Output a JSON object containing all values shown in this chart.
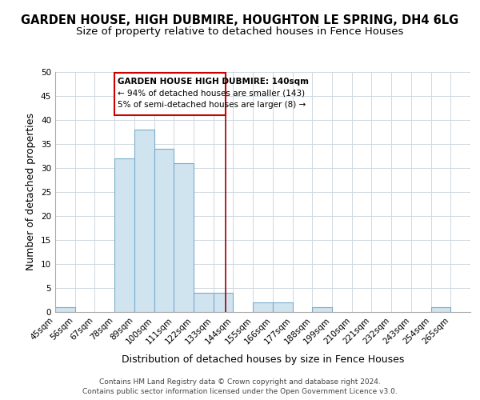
{
  "title": "GARDEN HOUSE, HIGH DUBMIRE, HOUGHTON LE SPRING, DH4 6LG",
  "subtitle": "Size of property relative to detached houses in Fence Houses",
  "xlabel": "Distribution of detached houses by size in Fence Houses",
  "ylabel": "Number of detached properties",
  "bin_labels": [
    "45sqm",
    "56sqm",
    "67sqm",
    "78sqm",
    "89sqm",
    "100sqm",
    "111sqm",
    "122sqm",
    "133sqm",
    "144sqm",
    "155sqm",
    "166sqm",
    "177sqm",
    "188sqm",
    "199sqm",
    "210sqm",
    "221sqm",
    "232sqm",
    "243sqm",
    "254sqm",
    "265sqm"
  ],
  "bin_edges": [
    45,
    56,
    67,
    78,
    89,
    100,
    111,
    122,
    133,
    144,
    155,
    166,
    177,
    188,
    199,
    210,
    221,
    232,
    243,
    254,
    265,
    276
  ],
  "counts": [
    1,
    0,
    0,
    32,
    38,
    34,
    31,
    4,
    4,
    0,
    2,
    2,
    0,
    1,
    0,
    0,
    0,
    0,
    0,
    1,
    0
  ],
  "bar_color": "#d0e4f0",
  "bar_edge_color": "#7aabcc",
  "vline_x": 140,
  "vline_color": "#990000",
  "ylim": [
    0,
    50
  ],
  "yticks": [
    0,
    5,
    10,
    15,
    20,
    25,
    30,
    35,
    40,
    45,
    50
  ],
  "annotation_title": "GARDEN HOUSE HIGH DUBMIRE: 140sqm",
  "annotation_line1": "← 94% of detached houses are smaller (143)",
  "annotation_line2": "5% of semi-detached houses are larger (8) →",
  "annotation_box_color": "#ffffff",
  "annotation_box_edge": "#cc0000",
  "footer1": "Contains HM Land Registry data © Crown copyright and database right 2024.",
  "footer2": "Contains public sector information licensed under the Open Government Licence v3.0.",
  "title_fontsize": 10.5,
  "subtitle_fontsize": 9.5,
  "axis_label_fontsize": 9,
  "tick_fontsize": 7.5,
  "footer_fontsize": 6.5
}
